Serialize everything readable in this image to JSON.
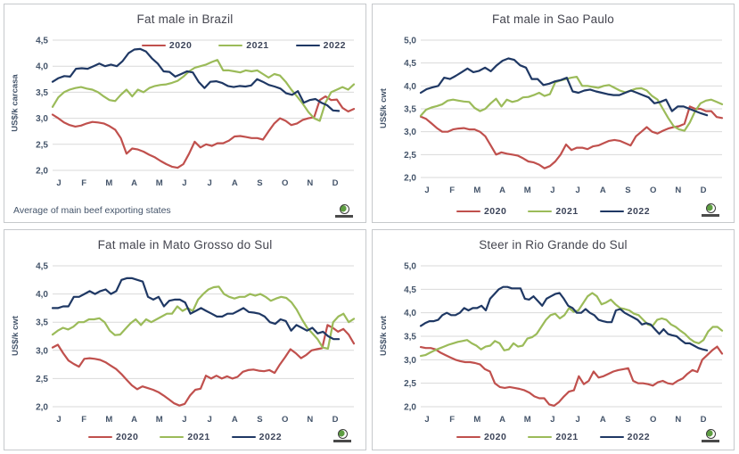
{
  "page": {
    "background": "#ffffff"
  },
  "colors": {
    "red": "#c0504d",
    "green": "#9bbb59",
    "navy": "#1f3864",
    "gridline": "#d9d9d9",
    "tick_text": "#44546a",
    "title_text": "#44454f",
    "panel_border": "#c6c9cc"
  },
  "logo": {
    "icon": "globe-icon"
  },
  "chart_data": [
    {
      "type": "line",
      "title": "Fat male in Brazil",
      "ylabel": "US$/k carcasa",
      "footnote": "Average  of main beef exporting states",
      "ylim": [
        2.0,
        4.5
      ],
      "ytick_step": 0.5,
      "ytick_labels": [
        "2,0",
        "2,5",
        "3,0",
        "3,5",
        "4,0",
        "4,5"
      ],
      "x_categories": [
        "J",
        "F",
        "M",
        "A",
        "M",
        "J",
        "J",
        "A",
        "S",
        "O",
        "N",
        "D"
      ],
      "grid": true,
      "legend_position": "top-right-inside",
      "series": [
        {
          "name": "2020",
          "color": "#c0504d",
          "end": 1.0,
          "values": [
            3.07,
            3.0,
            2.92,
            2.87,
            2.84,
            2.86,
            2.9,
            2.93,
            2.92,
            2.9,
            2.85,
            2.78,
            2.62,
            2.32,
            2.42,
            2.4,
            2.36,
            2.3,
            2.25,
            2.18,
            2.12,
            2.07,
            2.05,
            2.12,
            2.32,
            2.55,
            2.44,
            2.5,
            2.47,
            2.52,
            2.52,
            2.57,
            2.65,
            2.66,
            2.64,
            2.62,
            2.62,
            2.59,
            2.75,
            2.9,
            3.0,
            2.95,
            2.87,
            2.9,
            2.97,
            3.0,
            3.02,
            3.35,
            3.42,
            3.35,
            3.36,
            3.2,
            3.13,
            3.18
          ]
        },
        {
          "name": "2021",
          "color": "#9bbb59",
          "end": 1.0,
          "values": [
            3.22,
            3.4,
            3.5,
            3.55,
            3.58,
            3.6,
            3.57,
            3.55,
            3.5,
            3.42,
            3.35,
            3.33,
            3.45,
            3.55,
            3.42,
            3.55,
            3.5,
            3.58,
            3.62,
            3.64,
            3.65,
            3.68,
            3.72,
            3.8,
            3.9,
            3.97,
            4.0,
            4.03,
            4.08,
            4.12,
            3.92,
            3.92,
            3.9,
            3.88,
            3.92,
            3.9,
            3.92,
            3.85,
            3.78,
            3.85,
            3.82,
            3.7,
            3.55,
            3.42,
            3.28,
            3.12,
            3.0,
            2.95,
            3.3,
            3.5,
            3.55,
            3.6,
            3.55,
            3.65
          ]
        },
        {
          "name": "2022",
          "color": "#1f3864",
          "end": 0.95,
          "values": [
            3.7,
            3.77,
            3.81,
            3.8,
            3.95,
            3.96,
            3.95,
            4.0,
            4.05,
            4.0,
            4.03,
            4.0,
            4.1,
            4.25,
            4.32,
            4.33,
            4.28,
            4.15,
            4.05,
            3.9,
            3.89,
            3.8,
            3.85,
            3.9,
            3.88,
            3.7,
            3.58,
            3.7,
            3.71,
            3.68,
            3.62,
            3.6,
            3.62,
            3.61,
            3.63,
            3.75,
            3.7,
            3.64,
            3.61,
            3.57,
            3.48,
            3.45,
            3.52,
            3.3,
            3.35,
            3.37,
            3.3,
            3.25,
            3.15,
            3.14
          ]
        }
      ]
    },
    {
      "type": "line",
      "title": "Fat male in Sao Paulo",
      "ylabel": "US$/k cwt",
      "ylim": [
        2.0,
        5.0
      ],
      "ytick_step": 0.5,
      "ytick_labels": [
        "2,0",
        "2,5",
        "3,0",
        "3,5",
        "4,0",
        "4,5",
        "5,0"
      ],
      "x_categories": [
        "J",
        "F",
        "M",
        "A",
        "M",
        "J",
        "J",
        "A",
        "S",
        "O",
        "N",
        "D"
      ],
      "grid": true,
      "legend_position": "bottom-center",
      "series": [
        {
          "name": "2020",
          "color": "#c0504d",
          "end": 1.0,
          "values": [
            3.33,
            3.28,
            3.18,
            3.08,
            3.0,
            3.0,
            3.05,
            3.07,
            3.08,
            3.05,
            3.05,
            3.0,
            2.9,
            2.7,
            2.5,
            2.55,
            2.52,
            2.5,
            2.48,
            2.42,
            2.35,
            2.33,
            2.28,
            2.2,
            2.25,
            2.35,
            2.5,
            2.72,
            2.6,
            2.65,
            2.65,
            2.62,
            2.68,
            2.7,
            2.75,
            2.8,
            2.82,
            2.8,
            2.75,
            2.7,
            2.9,
            3.0,
            3.1,
            3.0,
            2.96,
            3.02,
            3.07,
            3.1,
            3.12,
            3.17,
            3.55,
            3.5,
            3.5,
            3.45,
            3.45,
            3.32,
            3.3
          ]
        },
        {
          "name": "2021",
          "color": "#9bbb59",
          "end": 1.0,
          "values": [
            3.35,
            3.48,
            3.53,
            3.56,
            3.6,
            3.68,
            3.7,
            3.68,
            3.66,
            3.65,
            3.52,
            3.45,
            3.5,
            3.62,
            3.72,
            3.55,
            3.7,
            3.65,
            3.68,
            3.75,
            3.76,
            3.8,
            3.85,
            3.78,
            3.82,
            4.08,
            4.12,
            4.15,
            4.18,
            4.2,
            4.0,
            4.0,
            3.98,
            3.96,
            4.0,
            4.02,
            3.96,
            3.9,
            3.86,
            3.9,
            3.94,
            3.95,
            3.9,
            3.78,
            3.7,
            3.5,
            3.3,
            3.12,
            3.05,
            3.02,
            3.2,
            3.45,
            3.62,
            3.68,
            3.7,
            3.65,
            3.6
          ]
        },
        {
          "name": "2022",
          "color": "#1f3864",
          "end": 0.95,
          "values": [
            3.85,
            3.93,
            3.97,
            4.0,
            4.18,
            4.15,
            4.22,
            4.3,
            4.38,
            4.3,
            4.33,
            4.4,
            4.32,
            4.45,
            4.55,
            4.6,
            4.57,
            4.45,
            4.4,
            4.15,
            4.15,
            4.02,
            4.05,
            4.1,
            4.13,
            4.18,
            3.88,
            3.85,
            3.9,
            3.92,
            3.88,
            3.85,
            3.82,
            3.8,
            3.8,
            3.85,
            3.9,
            3.85,
            3.8,
            3.75,
            3.62,
            3.65,
            3.7,
            3.45,
            3.55,
            3.55,
            3.5,
            3.45,
            3.4,
            3.36
          ]
        }
      ]
    },
    {
      "type": "line",
      "title": "Fat male in Mato Grosso do Sul",
      "ylabel": "US$/k cwt",
      "ylim": [
        2.0,
        4.5
      ],
      "ytick_step": 0.5,
      "ytick_labels": [
        "2,0",
        "2,5",
        "3,0",
        "3,5",
        "4,0",
        "4,5"
      ],
      "x_categories": [
        "J",
        "F",
        "M",
        "A",
        "M",
        "J",
        "J",
        "A",
        "S",
        "O",
        "N",
        "D"
      ],
      "grid": true,
      "legend_position": "bottom-center",
      "series": [
        {
          "name": "2020",
          "color": "#c0504d",
          "end": 1.0,
          "values": [
            3.05,
            3.1,
            2.95,
            2.82,
            2.76,
            2.71,
            2.85,
            2.86,
            2.85,
            2.83,
            2.79,
            2.73,
            2.67,
            2.58,
            2.48,
            2.38,
            2.31,
            2.36,
            2.33,
            2.3,
            2.26,
            2.2,
            2.13,
            2.06,
            2.02,
            2.05,
            2.2,
            2.3,
            2.32,
            2.55,
            2.5,
            2.55,
            2.5,
            2.54,
            2.5,
            2.53,
            2.62,
            2.65,
            2.66,
            2.64,
            2.63,
            2.65,
            2.6,
            2.75,
            2.88,
            3.02,
            2.95,
            2.86,
            2.92,
            3.0,
            3.02,
            3.04,
            3.45,
            3.4,
            3.33,
            3.38,
            3.28,
            3.12
          ]
        },
        {
          "name": "2021",
          "color": "#9bbb59",
          "end": 1.0,
          "values": [
            3.28,
            3.35,
            3.4,
            3.37,
            3.42,
            3.5,
            3.5,
            3.55,
            3.55,
            3.57,
            3.5,
            3.35,
            3.27,
            3.28,
            3.38,
            3.48,
            3.55,
            3.45,
            3.55,
            3.5,
            3.55,
            3.6,
            3.65,
            3.65,
            3.78,
            3.7,
            3.75,
            3.7,
            3.9,
            4.0,
            4.08,
            4.12,
            4.13,
            4.0,
            3.95,
            3.92,
            3.95,
            3.95,
            4.0,
            3.97,
            4.0,
            3.95,
            3.88,
            3.92,
            3.95,
            3.93,
            3.85,
            3.72,
            3.55,
            3.4,
            3.3,
            3.2,
            3.05,
            3.03,
            3.5,
            3.6,
            3.65,
            3.5,
            3.56
          ]
        },
        {
          "name": "2022",
          "color": "#1f3864",
          "end": 0.95,
          "values": [
            3.75,
            3.75,
            3.78,
            3.78,
            3.95,
            3.95,
            4.0,
            4.05,
            4.0,
            4.05,
            4.08,
            4.0,
            4.05,
            4.25,
            4.28,
            4.28,
            4.25,
            4.22,
            3.95,
            3.9,
            3.95,
            3.78,
            3.88,
            3.9,
            3.9,
            3.85,
            3.65,
            3.7,
            3.75,
            3.7,
            3.65,
            3.6,
            3.6,
            3.65,
            3.65,
            3.7,
            3.75,
            3.68,
            3.67,
            3.65,
            3.6,
            3.5,
            3.47,
            3.55,
            3.52,
            3.35,
            3.45,
            3.4,
            3.35,
            3.4,
            3.3,
            3.33,
            3.25,
            3.2,
            3.2
          ]
        }
      ]
    },
    {
      "type": "line",
      "title": "Steer  in Rio Grande do Sul",
      "ylabel": "US$/k cwt",
      "ylim": [
        2.0,
        5.0
      ],
      "ytick_step": 0.5,
      "ytick_labels": [
        "2,0",
        "2,5",
        "3,0",
        "3,5",
        "4,0",
        "4,5",
        "5,0"
      ],
      "x_categories": [
        "J",
        "F",
        "M",
        "A",
        "M",
        "J",
        "J",
        "A",
        "S",
        "O",
        "N",
        "D"
      ],
      "grid": true,
      "legend_position": "bottom-center",
      "series": [
        {
          "name": "2020",
          "color": "#c0504d",
          "end": 1.0,
          "values": [
            3.27,
            3.25,
            3.25,
            3.22,
            3.15,
            3.1,
            3.05,
            3.0,
            2.97,
            2.95,
            2.95,
            2.93,
            2.9,
            2.8,
            2.75,
            2.5,
            2.42,
            2.4,
            2.42,
            2.4,
            2.38,
            2.35,
            2.3,
            2.22,
            2.18,
            2.18,
            2.05,
            2.02,
            2.1,
            2.22,
            2.32,
            2.35,
            2.65,
            2.48,
            2.55,
            2.75,
            2.62,
            2.65,
            2.7,
            2.75,
            2.78,
            2.8,
            2.82,
            2.55,
            2.5,
            2.5,
            2.48,
            2.45,
            2.52,
            2.55,
            2.5,
            2.48,
            2.55,
            2.6,
            2.7,
            2.78,
            2.74,
            3.0,
            3.1,
            3.2,
            3.28,
            3.13
          ]
        },
        {
          "name": "2021",
          "color": "#9bbb59",
          "end": 1.0,
          "values": [
            3.08,
            3.1,
            3.15,
            3.2,
            3.24,
            3.28,
            3.32,
            3.35,
            3.38,
            3.4,
            3.42,
            3.35,
            3.3,
            3.22,
            3.28,
            3.3,
            3.4,
            3.35,
            3.2,
            3.22,
            3.35,
            3.28,
            3.3,
            3.45,
            3.48,
            3.55,
            3.7,
            3.85,
            3.95,
            3.98,
            3.88,
            3.95,
            4.1,
            4.02,
            4.05,
            4.2,
            4.35,
            4.42,
            4.35,
            4.18,
            4.22,
            4.28,
            4.18,
            4.1,
            4.08,
            4.05,
            3.98,
            3.95,
            3.85,
            3.75,
            3.72,
            3.85,
            3.88,
            3.85,
            3.75,
            3.7,
            3.62,
            3.55,
            3.45,
            3.38,
            3.35,
            3.42,
            3.6,
            3.7,
            3.7,
            3.62
          ]
        },
        {
          "name": "2022",
          "color": "#1f3864",
          "end": 0.95,
          "values": [
            3.72,
            3.78,
            3.82,
            3.82,
            3.85,
            3.95,
            4.0,
            3.95,
            3.95,
            4.0,
            4.1,
            4.05,
            4.1,
            4.1,
            4.15,
            4.05,
            4.3,
            4.4,
            4.5,
            4.55,
            4.55,
            4.52,
            4.52,
            4.52,
            4.3,
            4.28,
            4.35,
            4.25,
            4.15,
            4.3,
            4.35,
            4.4,
            4.42,
            4.3,
            4.15,
            4.1,
            4.0,
            4.0,
            4.08,
            4.0,
            3.95,
            3.85,
            3.82,
            3.8,
            3.8,
            4.05,
            4.08,
            4.0,
            3.95,
            3.9,
            3.85,
            3.75,
            3.78,
            3.75,
            3.65,
            3.55,
            3.65,
            3.55,
            3.52,
            3.5,
            3.42,
            3.35,
            3.35,
            3.3,
            3.25,
            3.22,
            3.2
          ]
        }
      ]
    }
  ]
}
